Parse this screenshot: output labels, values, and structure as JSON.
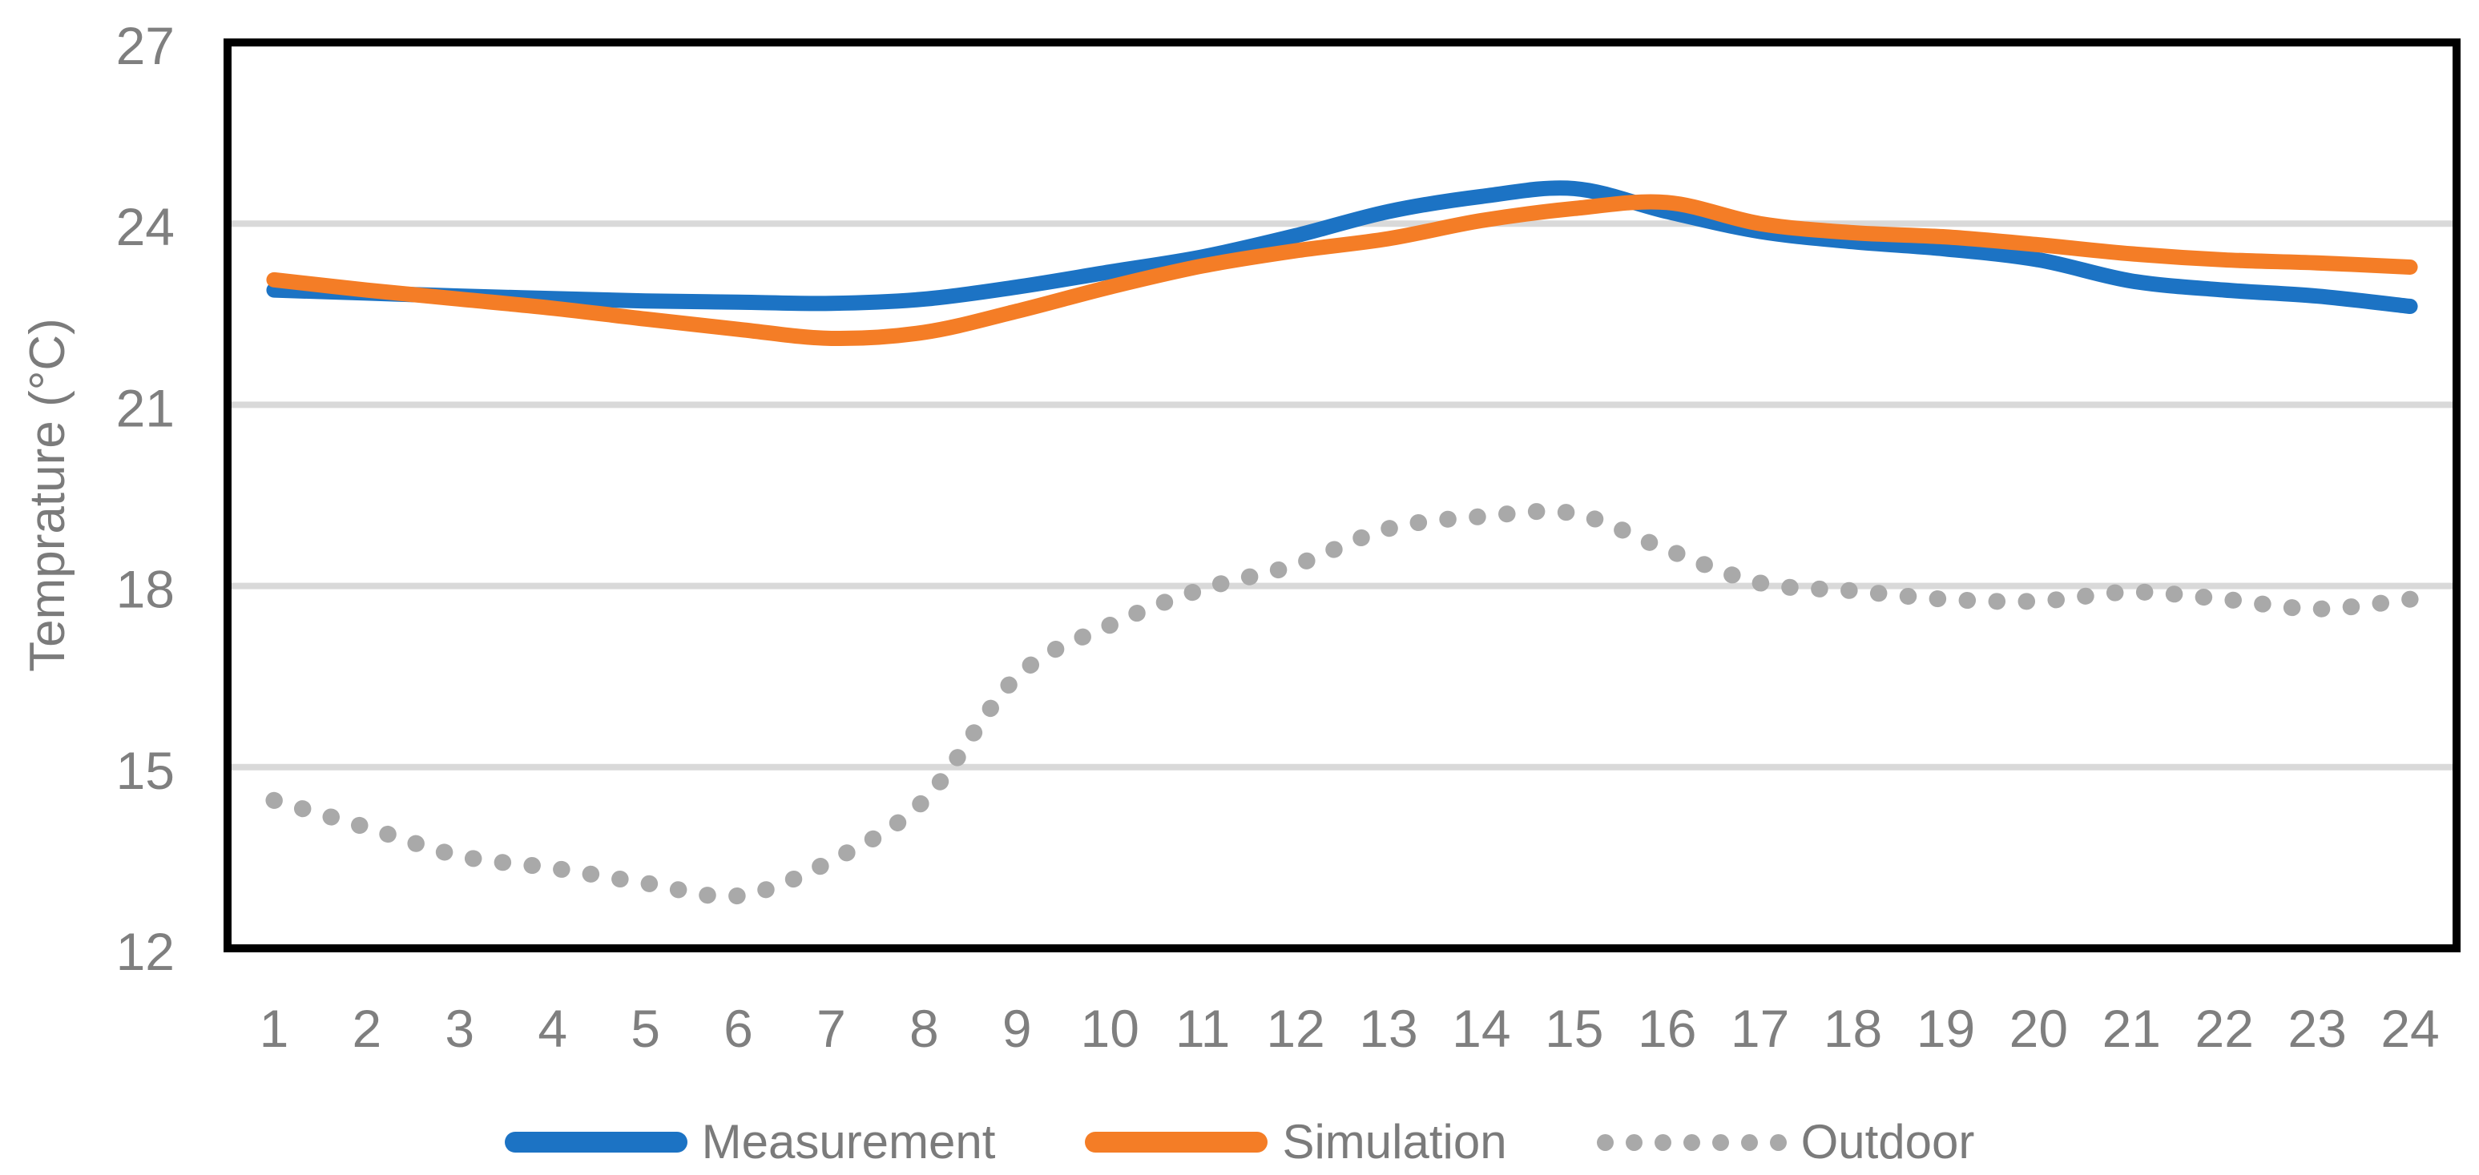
{
  "chart_data": {
    "type": "line",
    "title": "",
    "xlabel": "",
    "ylabel": "Temprature (°C)",
    "x": [
      1,
      2,
      3,
      4,
      5,
      6,
      7,
      8,
      9,
      10,
      11,
      12,
      13,
      14,
      15,
      16,
      17,
      18,
      19,
      20,
      21,
      22,
      23,
      24
    ],
    "ylim": [
      12,
      27
    ],
    "yticks": [
      12,
      15,
      18,
      21,
      24,
      27
    ],
    "grid": true,
    "legend_position": "bottom",
    "series": [
      {
        "name": "Measurement",
        "style": "solid",
        "color": "#1c73c4",
        "values": [
          22.9,
          22.85,
          22.8,
          22.76,
          22.72,
          22.7,
          22.68,
          22.75,
          22.95,
          23.2,
          23.45,
          23.8,
          24.2,
          24.45,
          24.58,
          24.2,
          23.87,
          23.7,
          23.58,
          23.4,
          23.05,
          22.9,
          22.8,
          22.63
        ]
      },
      {
        "name": "Simulation",
        "style": "solid",
        "color": "#f47d26",
        "values": [
          23.07,
          22.9,
          22.75,
          22.6,
          22.42,
          22.25,
          22.1,
          22.2,
          22.55,
          22.95,
          23.3,
          23.55,
          23.75,
          24.05,
          24.25,
          24.35,
          24.0,
          23.85,
          23.78,
          23.65,
          23.5,
          23.4,
          23.35,
          23.28
        ]
      },
      {
        "name": "Outdoor",
        "style": "dotted",
        "color": "#a9a9a9",
        "values": [
          14.45,
          14.0,
          13.53,
          13.33,
          13.08,
          12.87,
          13.45,
          14.45,
          16.5,
          17.35,
          17.95,
          18.35,
          18.95,
          19.15,
          19.2,
          18.6,
          18.05,
          17.92,
          17.78,
          17.75,
          17.9,
          17.78,
          17.62,
          17.78
        ]
      }
    ]
  },
  "colors": {
    "plot_border": "#000000",
    "gridline": "#d9d9d9",
    "tick_text": "#7f7f7f",
    "axis_title_text": "#7b7b7b",
    "legend_text": "#7b7b7b",
    "background": "#ffffff"
  }
}
